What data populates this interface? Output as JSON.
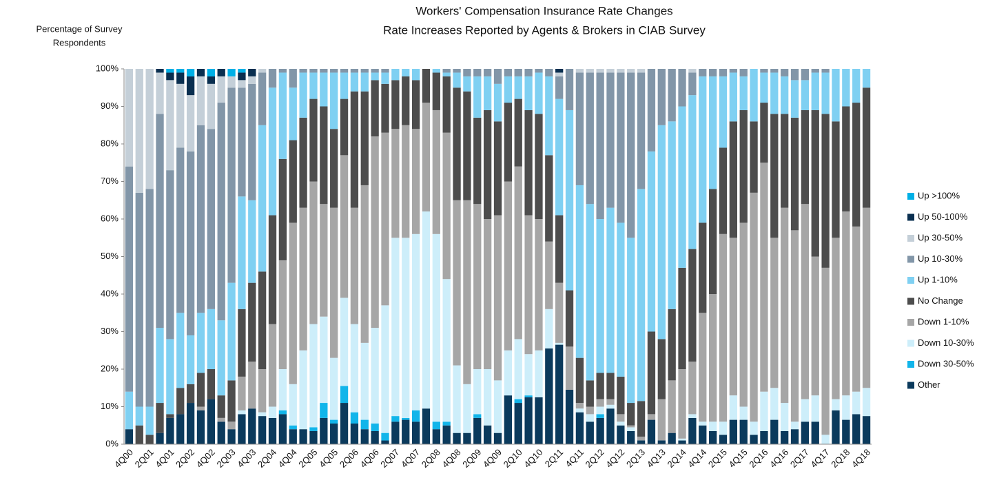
{
  "chart_data": {
    "type": "stacked_bar",
    "title": "Workers' Compensation Insurance Rate Changes",
    "subtitle": "Rate Increases Reported by Agents & Brokers in CIAB Survey",
    "ylabel": [
      "Percentage of Survey",
      "Respondents"
    ],
    "categories": [
      "4Q00",
      null,
      "2Q01",
      null,
      "4Q01",
      null,
      "2Q02",
      null,
      "4Q02",
      null,
      "2Q03",
      null,
      "4Q03",
      null,
      "2Q04",
      null,
      "4Q04",
      null,
      "2Q05",
      null,
      "4Q05",
      null,
      "2Q06",
      null,
      "4Q06",
      null,
      "2Q07",
      null,
      "4Q07",
      null,
      "2Q08",
      null,
      "4Q08",
      null,
      "2Q09",
      null,
      "4Q09",
      null,
      "2Q10",
      null,
      "4Q10",
      null,
      "2Q11",
      null,
      "4Q11",
      null,
      "2Q12",
      null,
      "4Q12",
      null,
      "2Q13",
      null,
      "4Q13",
      null,
      "2Q14",
      null,
      "4Q14",
      null,
      "2Q15",
      null,
      "4Q15",
      null,
      "2Q16",
      null,
      "4Q16",
      null,
      "2Q17",
      null,
      "4Q17",
      null,
      "2Q18",
      null,
      "4Q18"
    ],
    "ylim": [
      0,
      100
    ],
    "yticks": [
      {
        "value": 0,
        "label": "0%"
      },
      {
        "value": 10,
        "label": "10%"
      },
      {
        "value": 20,
        "label": "20%"
      },
      {
        "value": 30,
        "label": "30%"
      },
      {
        "value": 40,
        "label": "40%"
      },
      {
        "value": 50,
        "label": "50%"
      },
      {
        "value": 60,
        "label": "60%"
      },
      {
        "value": 70,
        "label": "70%"
      },
      {
        "value": 80,
        "label": "80%"
      },
      {
        "value": 90,
        "label": "90%"
      },
      {
        "value": 100,
        "label": "100%"
      }
    ],
    "grid": false,
    "legend": "right",
    "series": [
      {
        "name": "Other",
        "color": "#0b3a5c",
        "values": [
          4,
          0,
          0,
          3,
          7,
          8,
          11,
          9,
          12,
          6,
          4,
          8,
          9.5,
          7.5,
          7,
          8,
          4,
          4,
          3.5,
          7,
          5.5,
          11,
          5.5,
          4,
          3.5,
          1,
          6,
          6.5,
          6,
          9.5,
          4,
          5,
          3,
          3,
          7,
          5,
          3,
          13,
          11,
          12.5,
          12.5,
          25.5,
          26.5,
          14.5,
          8.5,
          6,
          7,
          9.5,
          5,
          3.5,
          1,
          6.5,
          1,
          3,
          1,
          7,
          5,
          3.5,
          2.5,
          6.5,
          6.5,
          2.5,
          3.5,
          6.5,
          3.5,
          4,
          6,
          6,
          0,
          9,
          6.5,
          8,
          7.5
        ]
      },
      {
        "name": "Down 30-50%",
        "color": "#12b5ea",
        "values": [
          0,
          0,
          0,
          0,
          0,
          0,
          0,
          0,
          0,
          0,
          0,
          0,
          0,
          0,
          0,
          1,
          1,
          0,
          1,
          4,
          1,
          4.5,
          3,
          2.5,
          2,
          2,
          1.5,
          0.5,
          3,
          0,
          2,
          1,
          0,
          0,
          1,
          0,
          0,
          0,
          1,
          0.5,
          0,
          0,
          0,
          0,
          0,
          0,
          1,
          0,
          0,
          0,
          0,
          0,
          0,
          0,
          0,
          0,
          0,
          0,
          0,
          0,
          0,
          0,
          0,
          0,
          0,
          0,
          0,
          0,
          0,
          0,
          0,
          0,
          0
        ]
      },
      {
        "name": "Down 10-30%",
        "color": "#cdeefa",
        "values": [
          0,
          0,
          0,
          0,
          0,
          0,
          0,
          0,
          0,
          0,
          0,
          1,
          0,
          1,
          3,
          11,
          11,
          21,
          27.5,
          23,
          16.5,
          23.5,
          23.5,
          20.5,
          25.5,
          34,
          47.5,
          48,
          47,
          52.5,
          50,
          38,
          18,
          13,
          12,
          15,
          14,
          12,
          16,
          11,
          12.5,
          10.5,
          0.5,
          0,
          1,
          2,
          2,
          1,
          1,
          1,
          0,
          0,
          0,
          0,
          0.5,
          1,
          1,
          2.5,
          3.5,
          6.5,
          3.5,
          3.5,
          10.5,
          8.5,
          7.5,
          2,
          6,
          7,
          2.5,
          3,
          6.5,
          6,
          7.5
        ]
      },
      {
        "name": "Down 1-10%",
        "color": "#a6a6a6",
        "values": [
          0,
          0,
          0,
          0,
          0,
          0,
          0,
          1,
          0,
          1,
          2,
          9,
          12.5,
          11.5,
          22,
          29,
          43,
          38,
          38,
          30,
          40,
          38,
          31,
          42,
          51,
          46,
          29,
          30,
          28,
          29,
          33,
          39,
          44,
          49,
          44,
          40,
          44,
          45,
          46,
          37,
          35,
          18,
          16,
          11.5,
          1.5,
          2,
          2,
          1.5,
          2,
          0.5,
          1,
          1.5,
          11,
          14,
          18.5,
          14,
          29,
          34,
          50,
          42,
          49,
          61,
          61,
          40,
          52,
          51,
          52,
          37,
          44.5,
          43,
          49,
          44,
          48
        ]
      },
      {
        "name": "No Change",
        "color": "#4d4d4d",
        "values": [
          0,
          5,
          2.5,
          8,
          1,
          7,
          5,
          9,
          8,
          6,
          11,
          18,
          21,
          26,
          29,
          27,
          22,
          24,
          22,
          26,
          21,
          15,
          31,
          25,
          15,
          13,
          13,
          13,
          13,
          9,
          10,
          15,
          30,
          29,
          23,
          29,
          25,
          21,
          18,
          28,
          28,
          23,
          18,
          15,
          12,
          7,
          7,
          7,
          10,
          6,
          9.5,
          22,
          16,
          19,
          27,
          30,
          24,
          28,
          23,
          31,
          30,
          19,
          16,
          33,
          25,
          30,
          25,
          39,
          41,
          31,
          28,
          33,
          32
        ]
      },
      {
        "name": "Up 1-10%",
        "color": "#7fd0f2",
        "values": [
          10,
          5,
          7.5,
          20,
          20,
          20,
          13,
          16,
          16,
          20,
          26,
          30,
          22,
          39,
          34,
          23,
          14,
          12,
          7,
          9,
          15,
          7,
          5,
          5,
          2,
          3,
          3,
          2,
          3,
          0,
          1,
          1,
          4,
          4,
          11,
          9,
          10,
          7,
          6,
          9,
          11,
          21,
          31,
          48,
          46,
          47,
          41,
          44,
          41,
          44,
          56.5,
          48,
          57,
          50,
          43,
          41,
          39,
          30,
          19,
          13,
          9,
          14,
          8,
          11,
          10,
          10,
          8,
          10,
          11,
          14,
          10,
          9,
          5
        ]
      },
      {
        "name": "Up 10-30%",
        "color": "#8296a8",
        "values": [
          60,
          57,
          58,
          57,
          45,
          44,
          49,
          50,
          48,
          58,
          52,
          29,
          31,
          14,
          5,
          1,
          5,
          1,
          1,
          1,
          1,
          1,
          1,
          1,
          1,
          1,
          0,
          0,
          0,
          0,
          0,
          1,
          1,
          2,
          2,
          2,
          4,
          2,
          2,
          2,
          1,
          2,
          6,
          11,
          30,
          35,
          39,
          36,
          40,
          44,
          31,
          22,
          15,
          14,
          10,
          6,
          2,
          2,
          2,
          1,
          2,
          0,
          1,
          1,
          2,
          3,
          3,
          1,
          1,
          0,
          0,
          0,
          0
        ]
      },
      {
        "name": "Up 30-50%",
        "color": "#c4cfd8",
        "values": [
          26,
          33,
          32,
          11,
          24,
          17,
          15,
          13,
          12,
          7,
          3,
          2,
          2,
          1,
          0,
          0,
          0,
          0,
          0,
          0,
          0,
          0,
          0,
          0,
          0,
          0,
          0,
          0,
          0,
          0,
          0,
          0,
          0,
          0,
          0,
          0,
          0,
          0,
          0,
          0,
          0,
          0,
          1,
          0,
          1,
          1,
          1,
          1,
          1,
          1,
          1,
          0,
          0,
          0,
          0,
          1,
          0,
          0,
          0,
          0,
          0,
          0,
          0,
          0,
          0,
          0,
          0,
          0,
          0,
          0,
          0,
          0,
          0
        ]
      },
      {
        "name": "Up 50-100%",
        "color": "#0a2f50",
        "values": [
          0,
          0,
          0,
          1,
          2,
          3,
          5,
          2,
          2,
          2,
          0,
          2,
          2,
          0,
          0,
          0,
          0,
          0,
          0,
          0,
          0,
          0,
          0,
          0,
          0,
          0,
          0,
          0,
          0,
          0,
          0,
          0,
          0,
          0,
          0,
          0,
          0,
          0,
          0,
          0,
          0,
          0,
          1,
          0,
          0,
          0,
          0,
          0,
          0,
          0,
          0,
          0,
          0,
          0,
          0,
          0,
          0,
          0,
          0,
          0,
          0,
          0,
          0,
          0,
          0,
          0,
          0,
          0,
          0,
          0,
          0,
          0,
          0
        ]
      },
      {
        "name": "Up >100%",
        "color": "#00b0e6",
        "values": [
          0,
          0,
          0,
          0,
          1,
          1,
          2,
          0,
          2,
          0,
          2,
          1,
          0,
          0,
          0,
          0,
          0,
          0,
          0,
          0,
          0,
          0,
          0,
          0,
          0,
          0,
          0,
          0,
          0,
          0,
          0,
          0,
          0,
          0,
          0,
          0,
          0,
          0,
          0,
          0,
          0,
          0,
          0,
          0,
          0,
          0,
          0,
          0,
          0,
          0,
          0,
          0,
          0,
          0,
          0,
          0,
          0,
          0,
          0,
          0,
          0,
          0,
          0,
          0,
          0,
          0,
          0,
          0,
          0,
          0,
          0,
          0,
          0
        ]
      }
    ]
  }
}
